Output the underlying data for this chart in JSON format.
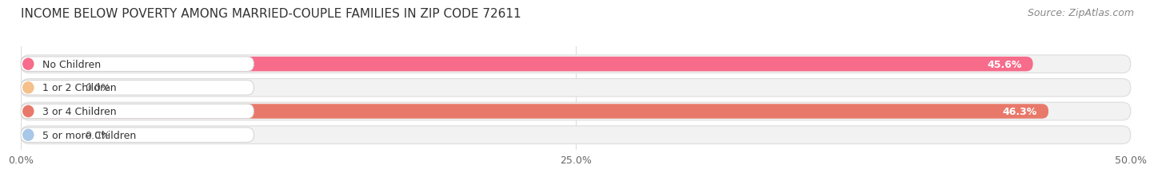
{
  "title": "INCOME BELOW POVERTY AMONG MARRIED-COUPLE FAMILIES IN ZIP CODE 72611",
  "source": "Source: ZipAtlas.com",
  "categories": [
    "No Children",
    "1 or 2 Children",
    "3 or 4 Children",
    "5 or more Children"
  ],
  "values": [
    45.6,
    0.0,
    46.3,
    0.0
  ],
  "bar_colors": [
    "#F76C8A",
    "#F5C08A",
    "#E8796A",
    "#A8C8E8"
  ],
  "label_bg_colors": [
    "#F76C8A",
    "#F5C08A",
    "#E8796A",
    "#A8C8E8"
  ],
  "track_color": "#F2F2F2",
  "track_border_color": "#DDDDDD",
  "xlim": [
    0,
    50.0
  ],
  "xticks": [
    0.0,
    25.0,
    50.0
  ],
  "xticklabels": [
    "0.0%",
    "25.0%",
    "50.0%"
  ],
  "title_fontsize": 11,
  "source_fontsize": 9,
  "label_fontsize": 9,
  "value_fontsize": 9,
  "background_color": "#FFFFFF",
  "grid_color": "#DDDDDD"
}
